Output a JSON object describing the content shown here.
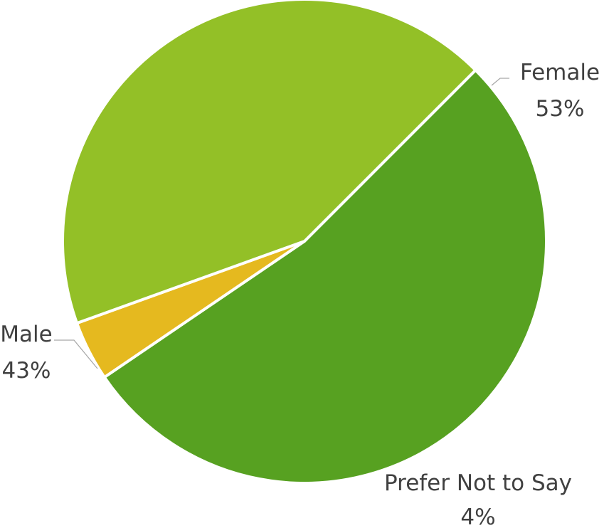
{
  "chart_data": {
    "type": "pie",
    "title": "",
    "slices": [
      {
        "label": "Female",
        "value": 53,
        "value_label": "53%",
        "color": "#57a121"
      },
      {
        "label": "Prefer Not to Say",
        "value": 4,
        "value_label": "4%",
        "color": "#e5b91f"
      },
      {
        "label": "Male",
        "value": 43,
        "value_label": "43%",
        "color": "#93c027"
      }
    ],
    "start_angle_deg": -45,
    "direction": "clockwise",
    "legend": "none",
    "data_labels": "outside-with-leader-lines"
  }
}
